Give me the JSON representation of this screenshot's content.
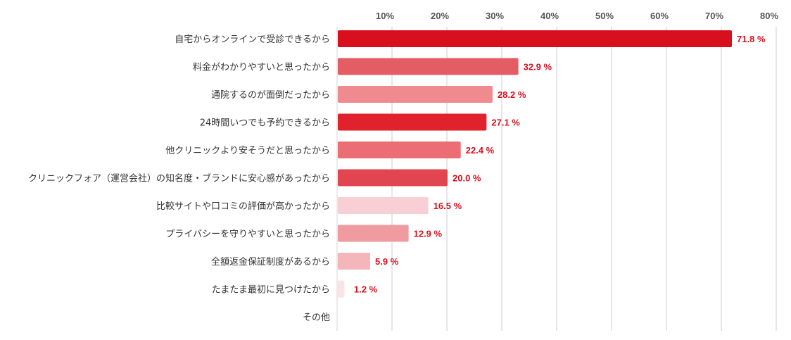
{
  "chart_data": {
    "type": "bar",
    "orientation": "horizontal",
    "title": "",
    "xlabel": "",
    "ylabel": "",
    "xlim": [
      0,
      80
    ],
    "ticks": [
      10,
      20,
      30,
      40,
      50,
      60,
      70,
      80
    ],
    "tick_labels": [
      "10%",
      "20%",
      "30%",
      "40%",
      "50%",
      "60%",
      "70%",
      "80%"
    ],
    "grid": true,
    "categories": [
      "自宅からオンラインで受診できるから",
      "料金がわかりやすいと思ったから",
      "通院するのが面倒だったから",
      "24時間いつでも予約できるから",
      "他クリニックより安そうだと思ったから",
      "クリニックフォア（運営会社）の知名度・ブランドに安心感があったから",
      "比較サイトや口コミの評価が高かったから",
      "プライバシーを守りやすいと思ったから",
      "全額返金保証制度があるから",
      "たまたま最初に見つけたから",
      "その他"
    ],
    "values": [
      71.8,
      32.9,
      28.2,
      27.1,
      22.4,
      20.0,
      16.5,
      12.9,
      5.9,
      1.2,
      null
    ],
    "value_labels": [
      "71.8 %",
      "32.9 %",
      "28.2 %",
      "27.1 %",
      "22.4 %",
      "20.0 %",
      "16.5 %",
      "12.9 %",
      "5.9 %",
      "1.2 %",
      ""
    ],
    "bar_colors": [
      "#d8101e",
      "#e45c64",
      "#ef8a8f",
      "#e0222d",
      "#ea6e74",
      "#e14550",
      "#f8cfd4",
      "#ef9ba0",
      "#f4b6ba",
      "#fbe2e5",
      "#ffffff"
    ],
    "label_color": "#d8101e"
  }
}
